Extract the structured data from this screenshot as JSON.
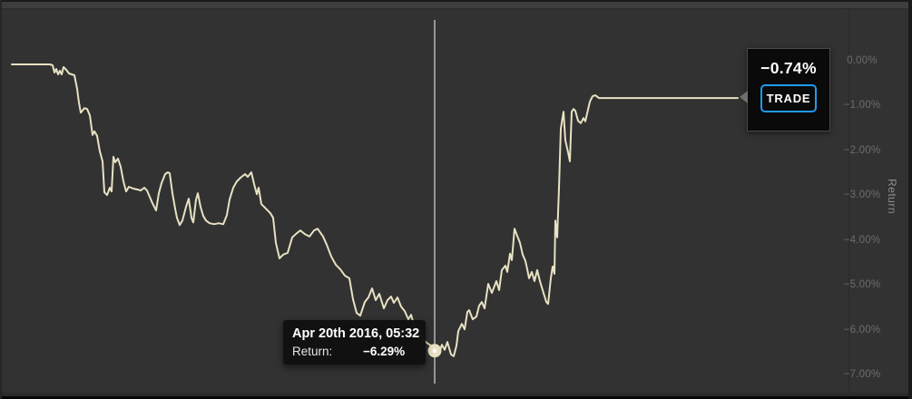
{
  "chart_data": {
    "type": "line",
    "title": "",
    "ylabel": "Return",
    "xlabel": "",
    "grid": false,
    "y_axis": {
      "position": "right",
      "ticks": [
        {
          "label": "0.00%",
          "value": 0
        },
        {
          "label": "−1.00%",
          "value": -1
        },
        {
          "label": "−2.00%",
          "value": -2
        },
        {
          "label": "−3.00%",
          "value": -3
        },
        {
          "label": "−4.00%",
          "value": -4
        },
        {
          "label": "−5.00%",
          "value": -5
        },
        {
          "label": "−6.00%",
          "value": -6
        },
        {
          "label": "−7.00%",
          "value": -7
        }
      ],
      "range": [
        -7.3,
        0.9
      ]
    },
    "line_color": "#e8e1c3",
    "series": [
      {
        "name": "Return",
        "points": [
          [
            13,
            0.0
          ],
          [
            55,
            0.0
          ],
          [
            58,
            -0.02
          ],
          [
            60,
            -0.18
          ],
          [
            62,
            -0.1
          ],
          [
            64,
            -0.22
          ],
          [
            66,
            -0.14
          ],
          [
            68,
            -0.22
          ],
          [
            70,
            -0.06
          ],
          [
            73,
            -0.12
          ],
          [
            76,
            -0.2
          ],
          [
            82,
            -0.24
          ],
          [
            85,
            -0.54
          ],
          [
            87,
            -0.84
          ],
          [
            89,
            -1.06
          ],
          [
            93,
            -0.96
          ],
          [
            96,
            -0.98
          ],
          [
            99,
            -1.12
          ],
          [
            102,
            -1.55
          ],
          [
            104,
            -1.47
          ],
          [
            107,
            -1.57
          ],
          [
            110,
            -1.91
          ],
          [
            113,
            -2.13
          ],
          [
            115,
            -2.81
          ],
          [
            118,
            -2.87
          ],
          [
            121,
            -2.71
          ],
          [
            123,
            -2.79
          ],
          [
            125,
            -2.03
          ],
          [
            127,
            -2.15
          ],
          [
            130,
            -2.07
          ],
          [
            133,
            -2.25
          ],
          [
            136,
            -2.57
          ],
          [
            139,
            -2.79
          ],
          [
            142,
            -2.69
          ],
          [
            147,
            -2.73
          ],
          [
            152,
            -2.75
          ],
          [
            155,
            -2.77
          ],
          [
            159,
            -2.71
          ],
          [
            162,
            -2.77
          ],
          [
            165,
            -2.91
          ],
          [
            168,
            -3.05
          ],
          [
            172,
            -3.21
          ],
          [
            175,
            -2.83
          ],
          [
            178,
            -2.61
          ],
          [
            182,
            -2.41
          ],
          [
            185,
            -2.37
          ],
          [
            187,
            -2.39
          ],
          [
            190,
            -2.83
          ],
          [
            193,
            -3.17
          ],
          [
            195,
            -3.37
          ],
          [
            198,
            -3.53
          ],
          [
            201,
            -3.43
          ],
          [
            205,
            -3.13
          ],
          [
            208,
            -2.95
          ],
          [
            211,
            -3.37
          ],
          [
            213,
            -3.47
          ],
          [
            216,
            -2.97
          ],
          [
            218,
            -2.83
          ],
          [
            221,
            -3.13
          ],
          [
            224,
            -3.33
          ],
          [
            227,
            -3.43
          ],
          [
            231,
            -3.49
          ],
          [
            236,
            -3.51
          ],
          [
            241,
            -3.49
          ],
          [
            246,
            -3.51
          ],
          [
            250,
            -3.31
          ],
          [
            253,
            -2.97
          ],
          [
            257,
            -2.71
          ],
          [
            261,
            -2.57
          ],
          [
            265,
            -2.49
          ],
          [
            270,
            -2.41
          ],
          [
            273,
            -2.47
          ],
          [
            277,
            -2.37
          ],
          [
            280,
            -2.63
          ],
          [
            283,
            -2.85
          ],
          [
            285,
            -2.71
          ],
          [
            288,
            -3.07
          ],
          [
            293,
            -3.17
          ],
          [
            298,
            -3.27
          ],
          [
            301,
            -3.37
          ],
          [
            304,
            -3.92
          ],
          [
            308,
            -4.26
          ],
          [
            312,
            -4.18
          ],
          [
            317,
            -4.14
          ],
          [
            322,
            -3.8
          ],
          [
            327,
            -3.71
          ],
          [
            331,
            -3.65
          ],
          [
            336,
            -3.73
          ],
          [
            341,
            -3.78
          ],
          [
            346,
            -3.65
          ],
          [
            350,
            -3.61
          ],
          [
            356,
            -3.78
          ],
          [
            360,
            -3.96
          ],
          [
            365,
            -4.22
          ],
          [
            370,
            -4.4
          ],
          [
            375,
            -4.5
          ],
          [
            380,
            -4.64
          ],
          [
            385,
            -4.7
          ],
          [
            389,
            -5.16
          ],
          [
            393,
            -5.46
          ],
          [
            397,
            -5.52
          ],
          [
            402,
            -5.22
          ],
          [
            406,
            -5.12
          ],
          [
            410,
            -4.92
          ],
          [
            414,
            -5.18
          ],
          [
            418,
            -5.04
          ],
          [
            423,
            -5.36
          ],
          [
            427,
            -5.18
          ],
          [
            431,
            -5.1
          ],
          [
            434,
            -5.24
          ],
          [
            438,
            -5.12
          ],
          [
            442,
            -5.32
          ],
          [
            446,
            -5.42
          ],
          [
            450,
            -5.6
          ],
          [
            453,
            -5.5
          ],
          [
            457,
            -5.78
          ],
          [
            461,
            -5.92
          ],
          [
            464,
            -5.96
          ],
          [
            468,
            -6.08
          ],
          [
            472,
            -6.14
          ],
          [
            475,
            -6.18
          ],
          [
            479,
            -6.29
          ],
          [
            483,
            -6.39
          ],
          [
            487,
            -6.16
          ],
          [
            490,
            -6.27
          ],
          [
            493,
            -6.1
          ],
          [
            497,
            -6.37
          ],
          [
            500,
            -6.41
          ],
          [
            503,
            -6.18
          ],
          [
            505,
            -5.86
          ],
          [
            509,
            -5.7
          ],
          [
            512,
            -5.82
          ],
          [
            515,
            -5.44
          ],
          [
            517,
            -5.4
          ],
          [
            521,
            -5.6
          ],
          [
            525,
            -5.54
          ],
          [
            528,
            -5.3
          ],
          [
            531,
            -5.22
          ],
          [
            534,
            -5.36
          ],
          [
            538,
            -4.82
          ],
          [
            542,
            -5.02
          ],
          [
            547,
            -4.76
          ],
          [
            550,
            -4.96
          ],
          [
            553,
            -4.52
          ],
          [
            557,
            -4.42
          ],
          [
            559,
            -4.56
          ],
          [
            562,
            -4.16
          ],
          [
            564,
            -4.3
          ],
          [
            567,
            -3.61
          ],
          [
            570,
            -3.77
          ],
          [
            573,
            -3.92
          ],
          [
            576,
            -4.18
          ],
          [
            579,
            -4.32
          ],
          [
            581,
            -4.5
          ],
          [
            583,
            -4.7
          ],
          [
            586,
            -4.56
          ],
          [
            589,
            -4.76
          ],
          [
            592,
            -4.52
          ],
          [
            595,
            -4.76
          ],
          [
            598,
            -4.96
          ],
          [
            602,
            -5.22
          ],
          [
            604,
            -5.26
          ],
          [
            607,
            -4.7
          ],
          [
            609,
            -4.44
          ],
          [
            611,
            -4.6
          ],
          [
            612,
            -3.43
          ],
          [
            614,
            -3.8
          ],
          [
            616,
            -2.71
          ],
          [
            618,
            -1.41
          ],
          [
            621,
            -1.04
          ],
          [
            623,
            -1.67
          ],
          [
            626,
            -1.93
          ],
          [
            628,
            -2.13
          ],
          [
            630,
            -1.04
          ],
          [
            632,
            -0.98
          ],
          [
            634,
            -1.02
          ],
          [
            637,
            -1.24
          ],
          [
            640,
            -1.29
          ],
          [
            643,
            -1.18
          ],
          [
            645,
            -1.25
          ],
          [
            650,
            -0.82
          ],
          [
            653,
            -0.7
          ],
          [
            656,
            -0.68
          ],
          [
            660,
            -0.74
          ],
          [
            700,
            -0.74
          ],
          [
            760,
            -0.74
          ],
          [
            813,
            -0.74
          ]
        ]
      }
    ],
    "highlight_point": {
      "x": 479,
      "return_pct": -6.29
    }
  },
  "tooltip": {
    "date": "Apr 20th 2016, 05:32",
    "row_label": "Return:",
    "row_value": "−6.29%"
  },
  "trade_flag": {
    "value": "−0.74%",
    "button_label": "TRADE",
    "accent_color": "#1e9beb"
  },
  "colors": {
    "line": "#e8e1c3",
    "crosshair": "#cbcbcb",
    "background": "#323232"
  }
}
